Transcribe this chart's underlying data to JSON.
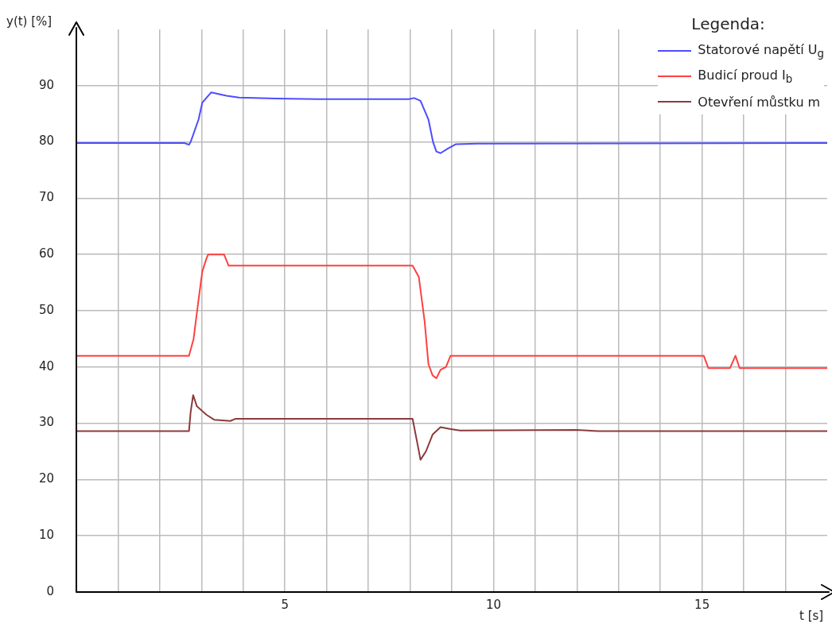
{
  "chart_data": {
    "type": "line",
    "xlabel": "t [s]",
    "ylabel": "y(t) [%]",
    "legend_title": "Legenda:",
    "legend": "top right",
    "grid": true,
    "marker": "none",
    "line_style": "solid",
    "xlim": [
      0,
      18
    ],
    "ylim": [
      0,
      100
    ],
    "xticks": [
      {
        "value": 1,
        "label": null
      },
      {
        "value": 2,
        "label": null
      },
      {
        "value": 3,
        "label": null
      },
      {
        "value": 4,
        "label": null
      },
      5,
      {
        "value": 6,
        "label": null
      },
      {
        "value": 7,
        "label": null
      },
      {
        "value": 8,
        "label": null
      },
      {
        "value": 9,
        "label": null
      },
      10,
      {
        "value": 11,
        "label": null
      },
      {
        "value": 12,
        "label": null
      },
      {
        "value": 13,
        "label": null
      },
      {
        "value": 14,
        "label": null
      },
      15,
      {
        "value": 16,
        "label": null
      },
      {
        "value": 17,
        "label": null
      }
    ],
    "yticks": [
      0,
      10,
      20,
      30,
      40,
      50,
      60,
      70,
      80,
      90
    ],
    "series": [
      {
        "name": "Statorové napětí U$_{g}$",
        "color": "#4d4dff",
        "x": [
          0,
          2.59,
          2.7,
          2.74,
          2.93,
          3.02,
          3.23,
          3.6,
          3.9,
          4.8,
          5.8,
          7.97,
          8.1,
          8.25,
          8.44,
          8.55,
          8.63,
          8.73,
          8.9,
          9.1,
          9.6,
          18
        ],
        "values": [
          79.8,
          79.8,
          79.5,
          80,
          84,
          87,
          88.8,
          88.2,
          87.9,
          87.7,
          87.6,
          87.6,
          87.8,
          87.3,
          84,
          80,
          78.3,
          78,
          78.8,
          79.6,
          79.7,
          79.8
        ]
      },
      {
        "name": "Budicí proud I$_{b}$",
        "color": "#ff4040",
        "x": [
          0,
          2.7,
          2.81,
          2.93,
          3.02,
          3.12,
          3.16,
          3.54,
          3.65,
          8.06,
          8.21,
          8.35,
          8.44,
          8.54,
          8.63,
          8.73,
          8.86,
          8.97,
          15.04,
          15.15,
          15.67,
          15.8,
          15.9,
          18
        ],
        "values": [
          42,
          42,
          45,
          52,
          57,
          59.3,
          60,
          60,
          58,
          58,
          56,
          48,
          40.5,
          38.5,
          38,
          39.5,
          40,
          42,
          42,
          39.8,
          39.8,
          42,
          39.8,
          39.8
        ]
      },
      {
        "name": "Otevření můstku m",
        "color": "#8b3a3a",
        "x": [
          0,
          2.7,
          2.74,
          2.8,
          2.89,
          3.12,
          3.31,
          3.69,
          3.82,
          8.06,
          8.16,
          8.25,
          8.38,
          8.54,
          8.73,
          8.95,
          9.2,
          12,
          12.5,
          18
        ],
        "values": [
          28.6,
          28.6,
          32,
          35,
          33,
          31.5,
          30.6,
          30.4,
          30.8,
          30.8,
          27,
          23.5,
          25,
          28,
          29.3,
          29,
          28.7,
          28.8,
          28.6,
          28.6
        ]
      }
    ]
  }
}
